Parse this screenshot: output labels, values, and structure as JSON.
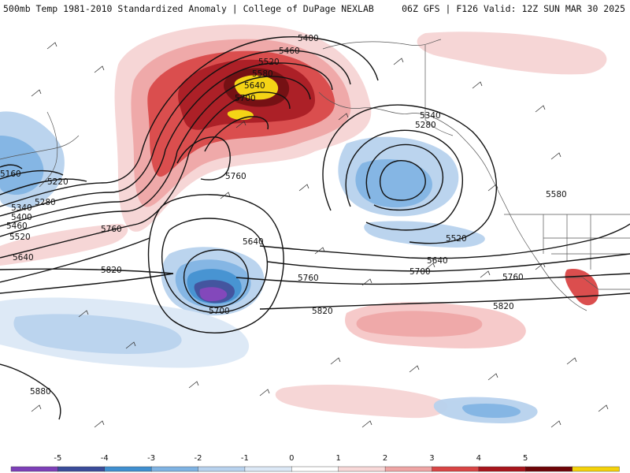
{
  "title": {
    "left": "500mb Temp 1981-2010 Standardized Anomaly | College of DuPage NEXLAB",
    "right": "06Z GFS | F126 Valid: 12Z SUN MAR 30 2025"
  },
  "colorbar": {
    "ticks": [
      "-5",
      "-4",
      "-3",
      "-2",
      "-1",
      "0",
      "1",
      "2",
      "3",
      "4",
      "5"
    ],
    "colors": [
      "#7d3fb8",
      "#3a4c9a",
      "#3f8fd0",
      "#7fb3e3",
      "#b8d2ee",
      "#dce8f6",
      "#ffffff",
      "#f8d8d8",
      "#efa5a5",
      "#d94545",
      "#a8151c",
      "#6e0508",
      "#f4d20a"
    ]
  },
  "contours": [
    {
      "label": "5400"
    },
    {
      "label": "5460"
    },
    {
      "label": "5520"
    },
    {
      "label": "5580"
    },
    {
      "label": "5640"
    },
    {
      "label": "5700"
    },
    {
      "label": "5760"
    },
    {
      "label": "5340"
    },
    {
      "label": "5280"
    },
    {
      "label": "5520"
    },
    {
      "label": "5640"
    },
    {
      "label": "5700"
    },
    {
      "label": "5760"
    },
    {
      "label": "5820"
    },
    {
      "label": "5580"
    },
    {
      "label": "5160"
    },
    {
      "label": "5220"
    },
    {
      "label": "5280"
    },
    {
      "label": "5340"
    },
    {
      "label": "5400"
    },
    {
      "label": "5460"
    },
    {
      "label": "5520"
    },
    {
      "label": "5640"
    },
    {
      "label": "5760"
    },
    {
      "label": "5820"
    },
    {
      "label": "5640"
    },
    {
      "label": "5700"
    },
    {
      "label": "5760"
    },
    {
      "label": "5820"
    },
    {
      "label": "5880"
    }
  ]
}
